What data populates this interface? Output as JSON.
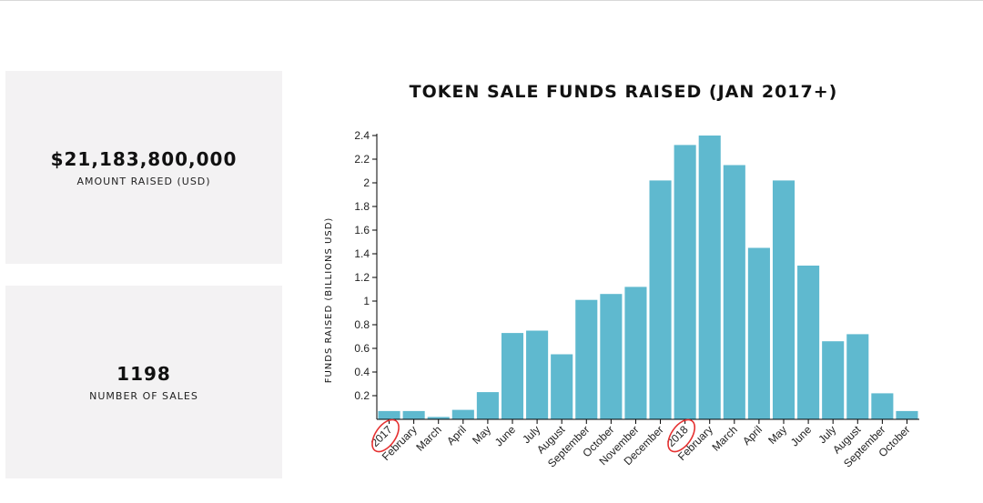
{
  "stats": {
    "amount_value": "$21,183,800,000",
    "amount_label": "AMOUNT RAISED (USD)",
    "sales_value": "1198",
    "sales_label": "NUMBER OF SALES"
  },
  "colors": {
    "bar": "#5fb9cf",
    "card_bg": "#f3f2f3",
    "annotation": "#e53131"
  },
  "chart_data": {
    "type": "bar",
    "title": "TOKEN SALE FUNDS RAISED (JAN 2017+)",
    "xlabel": "",
    "ylabel": "FUNDS RAISED (BILLIONS USD)",
    "ylim": [
      0,
      2.4
    ],
    "yticks": [
      "0.2",
      "0.4",
      "0.6",
      "0.8",
      "1",
      "1.2",
      "1.4",
      "1.6",
      "1.8",
      "2",
      "2.2",
      "2.4"
    ],
    "categories": [
      "2017",
      "February",
      "March",
      "April",
      "May",
      "June",
      "July",
      "August",
      "September",
      "October",
      "November",
      "December",
      "2018",
      "February",
      "March",
      "April",
      "May",
      "June",
      "July",
      "August",
      "September",
      "October"
    ],
    "values": [
      0.07,
      0.07,
      0.02,
      0.08,
      0.23,
      0.73,
      0.75,
      0.55,
      1.01,
      1.06,
      1.12,
      2.02,
      2.32,
      2.4,
      2.15,
      1.45,
      2.02,
      1.3,
      0.66,
      0.72,
      0.22,
      0.07
    ],
    "circled_labels": [
      "2017",
      "2018"
    ],
    "grid": false,
    "legend": "none"
  }
}
